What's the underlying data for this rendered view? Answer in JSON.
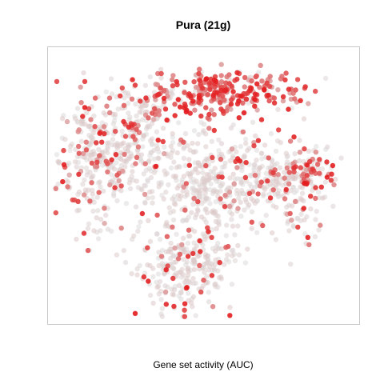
{
  "chart_data": {
    "type": "scatter",
    "title": "Pura (21g)",
    "xlabel": "Gene set activity (AUC)",
    "ylabel": "",
    "grid": false,
    "axes_ticks": false,
    "point_shape": "circle",
    "color_scale": {
      "low": "#dcdcdc",
      "high": "#e31a1c",
      "meaning": "Gene set activity (AUC)"
    },
    "clusters": [
      {
        "cx": 0.14,
        "cy": 0.6,
        "sx": 0.06,
        "sy": 0.13,
        "n": 260,
        "act": 0.28
      },
      {
        "cx": 0.27,
        "cy": 0.66,
        "sx": 0.06,
        "sy": 0.1,
        "n": 170,
        "act": 0.18
      },
      {
        "cx": 0.33,
        "cy": 0.83,
        "sx": 0.05,
        "sy": 0.06,
        "n": 55,
        "act": 0.55
      },
      {
        "cx": 0.59,
        "cy": 0.85,
        "sx": 0.12,
        "sy": 0.045,
        "n": 230,
        "act": 0.8
      },
      {
        "cx": 0.5,
        "cy": 0.85,
        "sx": 0.035,
        "sy": 0.04,
        "n": 35,
        "act": 0.9
      },
      {
        "cx": 0.45,
        "cy": 0.55,
        "sx": 0.05,
        "sy": 0.1,
        "n": 90,
        "act": 0.05
      },
      {
        "cx": 0.54,
        "cy": 0.47,
        "sx": 0.1,
        "sy": 0.08,
        "n": 230,
        "act": 0.06
      },
      {
        "cx": 0.67,
        "cy": 0.56,
        "sx": 0.08,
        "sy": 0.08,
        "n": 130,
        "act": 0.18
      },
      {
        "cx": 0.83,
        "cy": 0.56,
        "sx": 0.06,
        "sy": 0.05,
        "n": 110,
        "act": 0.45
      },
      {
        "cx": 0.82,
        "cy": 0.43,
        "sx": 0.04,
        "sy": 0.08,
        "n": 70,
        "act": 0.28
      },
      {
        "cx": 0.42,
        "cy": 0.18,
        "sx": 0.07,
        "sy": 0.08,
        "n": 210,
        "act": 0.16
      },
      {
        "cx": 0.53,
        "cy": 0.24,
        "sx": 0.05,
        "sy": 0.05,
        "n": 60,
        "act": 0.1
      }
    ]
  }
}
